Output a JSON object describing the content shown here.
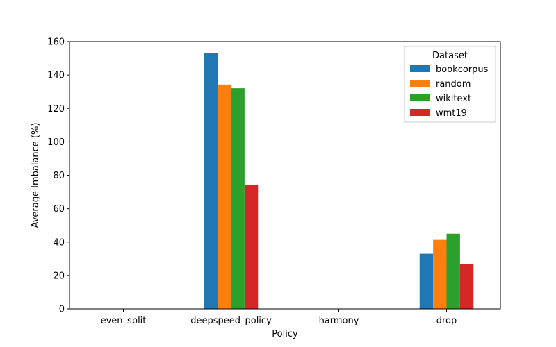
{
  "chart_data": {
    "type": "bar",
    "title": "",
    "xlabel": "Policy",
    "ylabel": "Average Imbalance (%)",
    "ylim": [
      0,
      160
    ],
    "yticks": [
      0,
      20,
      40,
      60,
      80,
      100,
      120,
      140,
      160
    ],
    "categories": [
      "even_split",
      "deepspeed_policy",
      "harmony",
      "drop"
    ],
    "legend_title": "Dataset",
    "legend_position": "top-right",
    "grid": false,
    "series": [
      {
        "name": "bookcorpus",
        "color": "#1f77b4",
        "values": [
          0,
          153,
          0,
          33
        ]
      },
      {
        "name": "random",
        "color": "#ff7f0e",
        "values": [
          0,
          134.3,
          0,
          41.3
        ]
      },
      {
        "name": "wikitext",
        "color": "#2ca02c",
        "values": [
          0,
          132.1,
          0,
          45
        ]
      },
      {
        "name": "wmt19",
        "color": "#d62728",
        "values": [
          0,
          74.4,
          0,
          26.8
        ]
      }
    ]
  }
}
